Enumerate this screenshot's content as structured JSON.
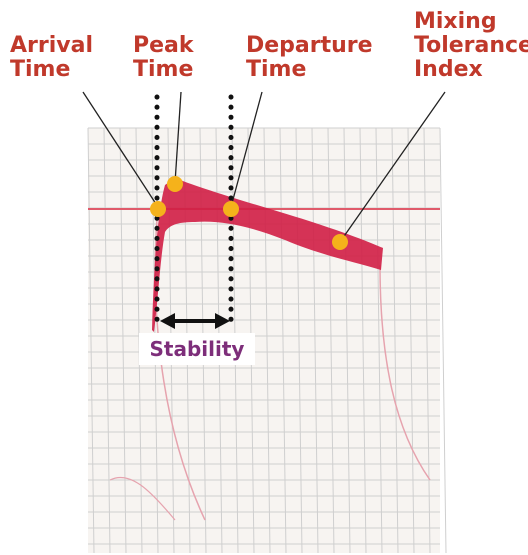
{
  "labels": {
    "arrival": {
      "line1": "Arrival",
      "line2": "Time"
    },
    "peak": {
      "line1": "Peak",
      "line2": "Time"
    },
    "departure": {
      "line1": "Departure",
      "line2": "Time"
    },
    "mixing": {
      "line1": "Mixing",
      "line2": "Tolerance",
      "line3": "Index"
    },
    "stability": "Stability"
  },
  "colors": {
    "label_text": "#c0392b",
    "stability_text": "#7d2e7a",
    "marker": "#f5b21b",
    "curve": "#d01e45",
    "grid": "#cfcfcf",
    "arrow": "#111111"
  }
}
